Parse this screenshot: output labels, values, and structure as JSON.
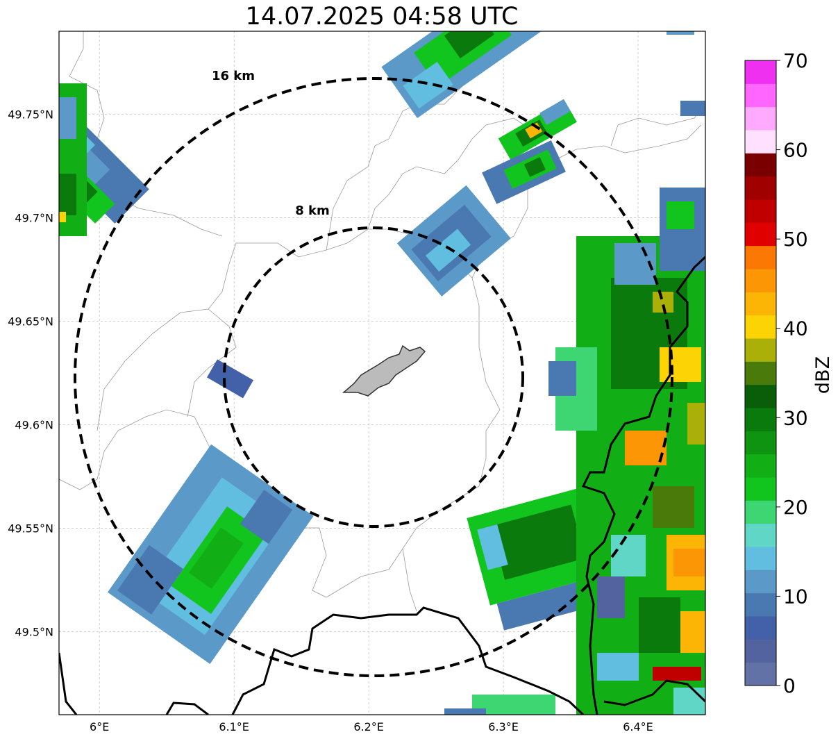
{
  "title": "14.07.2025 04:58 UTC",
  "map": {
    "lon_range": [
      5.97,
      6.45
    ],
    "lat_range": [
      49.46,
      49.79
    ],
    "x_ticks": [
      {
        "value": 6.0,
        "label": "6°E"
      },
      {
        "value": 6.1,
        "label": "6.1°E"
      },
      {
        "value": 6.2,
        "label": "6.2°E"
      },
      {
        "value": 6.3,
        "label": "6.3°E"
      },
      {
        "value": 6.4,
        "label": "6.4°E"
      }
    ],
    "y_ticks": [
      {
        "value": 49.5,
        "label": "49.5°N"
      },
      {
        "value": 49.55,
        "label": "49.55°N"
      },
      {
        "value": 49.6,
        "label": "49.6°N"
      },
      {
        "value": 49.65,
        "label": "49.65°N"
      },
      {
        "value": 49.7,
        "label": "49.7°N"
      },
      {
        "value": 49.75,
        "label": "49.75°N"
      }
    ],
    "gridlines": true,
    "range_rings": [
      {
        "label": "8 km",
        "radius_km": 8
      },
      {
        "label": "16 km",
        "radius_km": 16
      }
    ],
    "center": {
      "lon": 6.2,
      "lat": 49.623
    }
  },
  "colorbar": {
    "label": "dBZ",
    "ticks": [
      "0",
      "10",
      "20",
      "30",
      "40",
      "50",
      "60",
      "70"
    ],
    "colors": [
      "#6272a6",
      "#5363a0",
      "#4261a8",
      "#4a78b0",
      "#5b9ac8",
      "#62bee0",
      "#5fd6c6",
      "#3ed672",
      "#12c41e",
      "#12ae16",
      "#0e9410",
      "#0a7a0c",
      "#0a5e0a",
      "#4a7a0a",
      "#aab008",
      "#fcd405",
      "#fcb405",
      "#fc9605",
      "#fc7805",
      "#e00000",
      "#c00000",
      "#a00000",
      "#7a0000",
      "#ffe0ff",
      "#ffaaff",
      "#ff66ff",
      "#f030f0"
    ]
  }
}
